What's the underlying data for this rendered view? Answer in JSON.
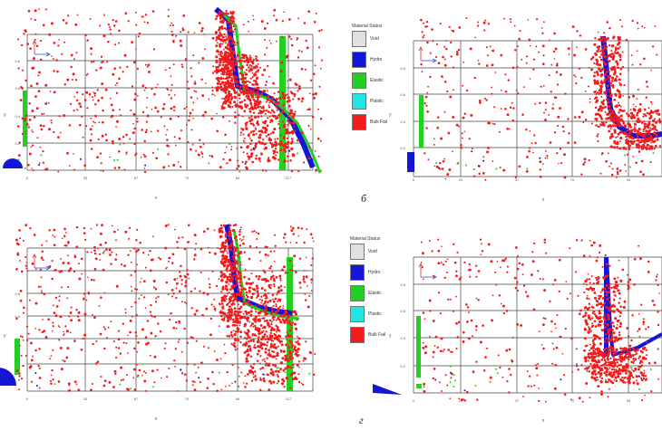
{
  "legend": {
    "title": "Material Status",
    "items": [
      {
        "label": "Void",
        "color": "#e0e0e0"
      },
      {
        "label": "Hydro",
        "color": "#1515d8"
      },
      {
        "label": "Elastic",
        "color": "#22d022"
      },
      {
        "label": "Plastic",
        "color": "#22e6e6"
      },
      {
        "label": "Bulk Fail",
        "color": "#f21c1c"
      }
    ]
  },
  "panels": [
    {
      "id": "a",
      "letter": "",
      "x_ticks": [
        "0",
        "33",
        "67",
        "70",
        "84",
        "117"
      ],
      "x_label": "x",
      "y_ticks": [
        "0.2",
        "0.4",
        "0.6",
        "0.8"
      ],
      "y_label": "y"
    },
    {
      "id": "b",
      "letter": "б",
      "x_ticks": [
        "0",
        "23",
        "47",
        "70",
        "94"
      ],
      "x_label": "x",
      "y_ticks": [
        "0.2",
        "0.4",
        "0.6",
        "0.8"
      ],
      "y_label": "y"
    },
    {
      "id": "c",
      "letter": "",
      "x_ticks": [
        "0",
        "33",
        "67",
        "70",
        "84",
        "117"
      ],
      "x_label": "x",
      "y_ticks": [
        "0.2",
        "0.4",
        "0.6",
        "0.8"
      ],
      "y_label": "y"
    },
    {
      "id": "d",
      "letter": "г",
      "x_ticks": [
        "0",
        "23",
        "47",
        "70",
        "94"
      ],
      "x_label": "x",
      "y_ticks": [
        "0.2",
        "0.4",
        "0.6",
        "0.8"
      ],
      "y_label": "y"
    }
  ],
  "colors": {
    "grid": "#444444",
    "particles": "#f21c1c",
    "wall": "#1515d8",
    "elastic": "#22d022"
  }
}
